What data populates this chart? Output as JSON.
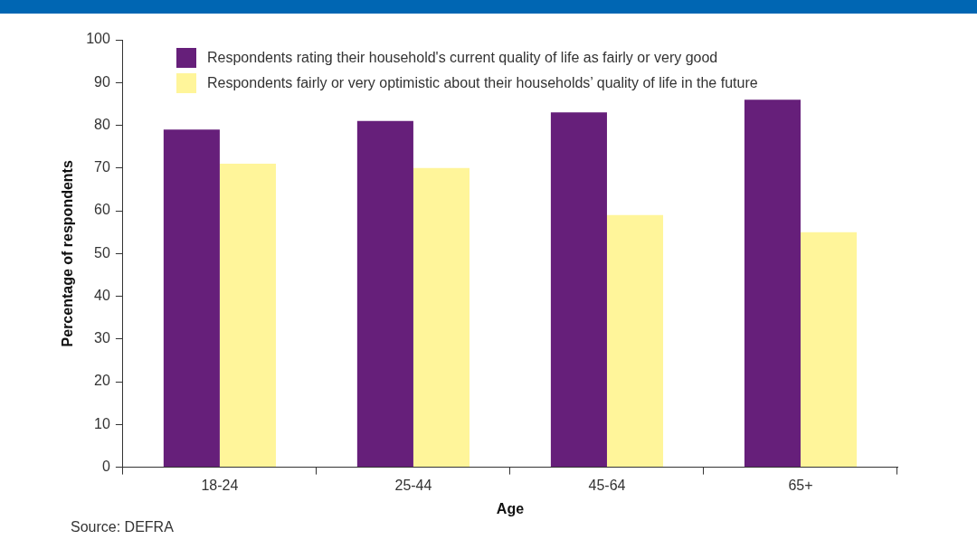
{
  "chart_data": {
    "type": "bar",
    "xlabel": "Age",
    "ylabel": "Percentage of respondents",
    "categories": [
      "18-24",
      "25-44",
      "45-64",
      "65+"
    ],
    "series": [
      {
        "name": "Respondents rating their household's current quality of life as fairly or very good",
        "color": "#661f7a",
        "values": [
          79,
          81,
          83,
          86
        ]
      },
      {
        "name": "Respondents fairly or very optimistic about their households’ quality of life in the future",
        "color": "#fff59a",
        "values": [
          71,
          70,
          59,
          55
        ]
      }
    ],
    "ylim": [
      0,
      100
    ],
    "yticks": [
      0,
      10,
      20,
      30,
      40,
      50,
      60,
      70,
      80,
      90,
      100
    ],
    "grid": false,
    "legend": "top left",
    "annotations": [
      "Source: DEFRA"
    ]
  }
}
